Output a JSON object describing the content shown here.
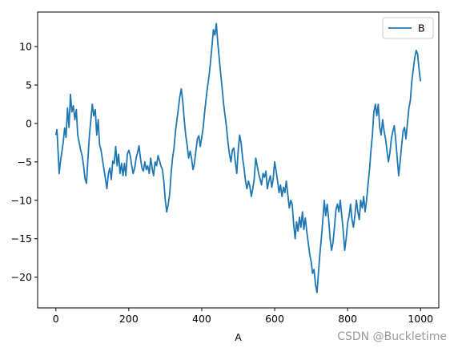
{
  "chart_data": {
    "type": "line",
    "title": "",
    "xlabel": "A",
    "ylabel": "",
    "xlim": [
      -50,
      1050
    ],
    "ylim": [
      -24,
      14.5
    ],
    "xticks": [
      0,
      200,
      400,
      600,
      800,
      1000
    ],
    "yticks": [
      -20,
      -15,
      -10,
      -5,
      0,
      5,
      10
    ],
    "grid": false,
    "legend": {
      "placement": "top-right",
      "entries": [
        "B"
      ]
    },
    "series": [
      {
        "name": "B",
        "color": "#1f77b4",
        "points": [
          [
            0,
            -1.5
          ],
          [
            3,
            -0.8
          ],
          [
            6,
            -3.5
          ],
          [
            9,
            -6.5
          ],
          [
            12,
            -5.2
          ],
          [
            16,
            -3.8
          ],
          [
            20,
            -2.5
          ],
          [
            24,
            -0.6
          ],
          [
            28,
            -1.8
          ],
          [
            32,
            2.0
          ],
          [
            36,
            -0.5
          ],
          [
            40,
            3.8
          ],
          [
            44,
            1.5
          ],
          [
            48,
            2.3
          ],
          [
            52,
            0.5
          ],
          [
            56,
            1.8
          ],
          [
            60,
            -1.5
          ],
          [
            64,
            -2.5
          ],
          [
            68,
            -3.5
          ],
          [
            72,
            -4.2
          ],
          [
            76,
            -5.5
          ],
          [
            80,
            -7.2
          ],
          [
            84,
            -7.8
          ],
          [
            88,
            -4.5
          ],
          [
            92,
            -1.5
          ],
          [
            96,
            0.5
          ],
          [
            100,
            2.5
          ],
          [
            104,
            1.0
          ],
          [
            108,
            1.8
          ],
          [
            112,
            -1.5
          ],
          [
            116,
            0.5
          ],
          [
            120,
            -2.8
          ],
          [
            124,
            -3.5
          ],
          [
            128,
            -4.8
          ],
          [
            132,
            -6.0
          ],
          [
            136,
            -7.2
          ],
          [
            140,
            -8.5
          ],
          [
            144,
            -6.5
          ],
          [
            148,
            -5.8
          ],
          [
            152,
            -7.3
          ],
          [
            156,
            -4.9
          ],
          [
            160,
            -5.2
          ],
          [
            164,
            -3.0
          ],
          [
            168,
            -5.5
          ],
          [
            172,
            -4.0
          ],
          [
            176,
            -6.5
          ],
          [
            180,
            -5.2
          ],
          [
            184,
            -6.8
          ],
          [
            188,
            -5.2
          ],
          [
            192,
            -6.8
          ],
          [
            196,
            -4.0
          ],
          [
            200,
            -3.5
          ],
          [
            204,
            -4.2
          ],
          [
            208,
            -5.5
          ],
          [
            212,
            -6.5
          ],
          [
            216,
            -5.8
          ],
          [
            220,
            -4.5
          ],
          [
            224,
            -3.8
          ],
          [
            228,
            -2.9
          ],
          [
            232,
            -4.5
          ],
          [
            236,
            -5.8
          ],
          [
            240,
            -6.2
          ],
          [
            244,
            -5.0
          ],
          [
            248,
            -6.0
          ],
          [
            252,
            -5.5
          ],
          [
            256,
            -6.5
          ],
          [
            260,
            -4.5
          ],
          [
            264,
            -5.8
          ],
          [
            268,
            -6.8
          ],
          [
            272,
            -5.0
          ],
          [
            276,
            -5.5
          ],
          [
            280,
            -4.2
          ],
          [
            284,
            -4.8
          ],
          [
            288,
            -5.5
          ],
          [
            292,
            -6.0
          ],
          [
            296,
            -7.5
          ],
          [
            300,
            -10.0
          ],
          [
            304,
            -11.5
          ],
          [
            308,
            -10.5
          ],
          [
            312,
            -9.2
          ],
          [
            316,
            -6.5
          ],
          [
            320,
            -4.5
          ],
          [
            324,
            -3.2
          ],
          [
            328,
            -1.0
          ],
          [
            332,
            0.5
          ],
          [
            336,
            2.0
          ],
          [
            340,
            3.5
          ],
          [
            344,
            4.5
          ],
          [
            348,
            2.8
          ],
          [
            352,
            0.5
          ],
          [
            356,
            -1.5
          ],
          [
            360,
            -2.8
          ],
          [
            364,
            -4.5
          ],
          [
            368,
            -3.6
          ],
          [
            372,
            -4.5
          ],
          [
            376,
            -6.0
          ],
          [
            380,
            -5.2
          ],
          [
            384,
            -3.5
          ],
          [
            388,
            -2.0
          ],
          [
            392,
            -1.6
          ],
          [
            396,
            -3.0
          ],
          [
            400,
            -1.8
          ],
          [
            404,
            -0.5
          ],
          [
            408,
            1.5
          ],
          [
            412,
            3.2
          ],
          [
            416,
            4.8
          ],
          [
            420,
            6.2
          ],
          [
            424,
            8.0
          ],
          [
            428,
            10.0
          ],
          [
            432,
            12.2
          ],
          [
            436,
            11.5
          ],
          [
            440,
            13.0
          ],
          [
            444,
            10.5
          ],
          [
            448,
            8.5
          ],
          [
            452,
            6.5
          ],
          [
            456,
            4.5
          ],
          [
            460,
            2.5
          ],
          [
            464,
            1.0
          ],
          [
            468,
            -0.5
          ],
          [
            472,
            -2.5
          ],
          [
            476,
            -4.0
          ],
          [
            480,
            -5.0
          ],
          [
            484,
            -3.5
          ],
          [
            488,
            -3.2
          ],
          [
            492,
            -5.0
          ],
          [
            496,
            -6.5
          ],
          [
            500,
            -3.5
          ],
          [
            504,
            -1.5
          ],
          [
            508,
            -2.5
          ],
          [
            512,
            -4.5
          ],
          [
            516,
            -5.8
          ],
          [
            520,
            -7.5
          ],
          [
            524,
            -8.5
          ],
          [
            528,
            -7.5
          ],
          [
            532,
            -8.2
          ],
          [
            536,
            -9.5
          ],
          [
            540,
            -8.5
          ],
          [
            544,
            -7.2
          ],
          [
            548,
            -4.5
          ],
          [
            552,
            -5.5
          ],
          [
            556,
            -6.5
          ],
          [
            560,
            -7.2
          ],
          [
            564,
            -8.0
          ],
          [
            568,
            -6.5
          ],
          [
            572,
            -7.0
          ],
          [
            576,
            -6.2
          ],
          [
            580,
            -8.5
          ],
          [
            584,
            -7.5
          ],
          [
            588,
            -6.8
          ],
          [
            592,
            -8.3
          ],
          [
            596,
            -7.2
          ],
          [
            600,
            -5.0
          ],
          [
            604,
            -6.2
          ],
          [
            608,
            -7.5
          ],
          [
            612,
            -9.0
          ],
          [
            616,
            -8.0
          ],
          [
            620,
            -9.5
          ],
          [
            624,
            -8.3
          ],
          [
            628,
            -9.0
          ],
          [
            632,
            -7.5
          ],
          [
            636,
            -9.2
          ],
          [
            640,
            -11.0
          ],
          [
            644,
            -10.0
          ],
          [
            648,
            -10.5
          ],
          [
            652,
            -13.0
          ],
          [
            656,
            -15.0
          ],
          [
            660,
            -12.8
          ],
          [
            664,
            -14.0
          ],
          [
            668,
            -12.2
          ],
          [
            672,
            -13.5
          ],
          [
            676,
            -11.5
          ],
          [
            680,
            -13.8
          ],
          [
            684,
            -12.3
          ],
          [
            688,
            -14.0
          ],
          [
            692,
            -15.5
          ],
          [
            696,
            -17.0
          ],
          [
            700,
            -18.0
          ],
          [
            704,
            -19.5
          ],
          [
            708,
            -19.0
          ],
          [
            712,
            -21.0
          ],
          [
            716,
            -22.0
          ],
          [
            720,
            -19.5
          ],
          [
            724,
            -17.0
          ],
          [
            728,
            -15.0
          ],
          [
            732,
            -12.5
          ],
          [
            736,
            -10.0
          ],
          [
            740,
            -12.0
          ],
          [
            744,
            -10.5
          ],
          [
            748,
            -12.5
          ],
          [
            752,
            -15.0
          ],
          [
            756,
            -16.5
          ],
          [
            760,
            -15.5
          ],
          [
            764,
            -13.5
          ],
          [
            768,
            -11.2
          ],
          [
            772,
            -10.5
          ],
          [
            776,
            -11.5
          ],
          [
            780,
            -10.0
          ],
          [
            784,
            -12.0
          ],
          [
            788,
            -14.0
          ],
          [
            792,
            -16.5
          ],
          [
            796,
            -15.0
          ],
          [
            800,
            -13.0
          ],
          [
            804,
            -12.0
          ],
          [
            808,
            -10.5
          ],
          [
            812,
            -12.5
          ],
          [
            816,
            -13.5
          ],
          [
            820,
            -12.0
          ],
          [
            824,
            -10.0
          ],
          [
            828,
            -11.5
          ],
          [
            832,
            -12.5
          ],
          [
            836,
            -10.0
          ],
          [
            840,
            -11.0
          ],
          [
            844,
            -9.5
          ],
          [
            848,
            -11.5
          ],
          [
            852,
            -10.0
          ],
          [
            856,
            -8.0
          ],
          [
            860,
            -6.0
          ],
          [
            864,
            -3.5
          ],
          [
            868,
            -1.5
          ],
          [
            872,
            1.5
          ],
          [
            876,
            2.5
          ],
          [
            880,
            1.0
          ],
          [
            884,
            2.5
          ],
          [
            888,
            -0.5
          ],
          [
            892,
            -1.5
          ],
          [
            896,
            0.5
          ],
          [
            900,
            -1.0
          ],
          [
            904,
            -2.0
          ],
          [
            908,
            -3.5
          ],
          [
            912,
            -5.0
          ],
          [
            916,
            -3.8
          ],
          [
            920,
            -2.0
          ],
          [
            924,
            -1.0
          ],
          [
            928,
            -0.3
          ],
          [
            932,
            -2.2
          ],
          [
            936,
            -4.5
          ],
          [
            940,
            -6.8
          ],
          [
            944,
            -5.0
          ],
          [
            948,
            -3.0
          ],
          [
            952,
            -1.0
          ],
          [
            956,
            -0.5
          ],
          [
            960,
            -2.0
          ],
          [
            964,
            0.0
          ],
          [
            968,
            2.0
          ],
          [
            972,
            3.0
          ],
          [
            976,
            5.5
          ],
          [
            980,
            7.0
          ],
          [
            984,
            8.5
          ],
          [
            988,
            9.5
          ],
          [
            992,
            9.0
          ],
          [
            996,
            7.0
          ],
          [
            1000,
            5.5
          ]
        ]
      }
    ]
  },
  "watermark": "CSDN @Buckletime"
}
